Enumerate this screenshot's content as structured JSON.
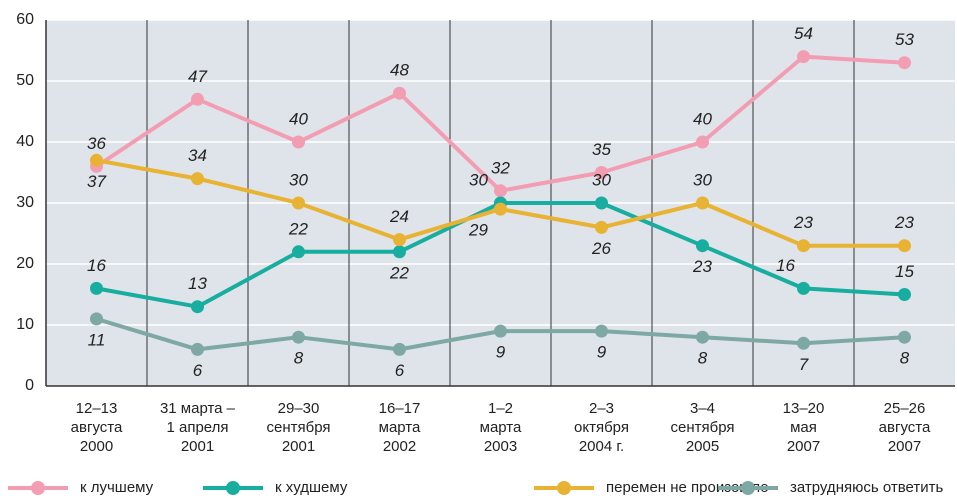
{
  "chart_data": {
    "type": "line",
    "categories": [
      [
        "12–13",
        "августа",
        "2000"
      ],
      [
        "31 марта –",
        "1 апреля",
        "2001"
      ],
      [
        "29–30",
        "сентября",
        "2001"
      ],
      [
        "16–17",
        "марта",
        "2002"
      ],
      [
        "1–2",
        "марта",
        "2003"
      ],
      [
        "2–3",
        "октября",
        "2004 г."
      ],
      [
        "3–4",
        "сентября",
        "2005"
      ],
      [
        "13–20",
        "мая",
        "2007"
      ],
      [
        "25–26",
        "августа",
        "2007"
      ]
    ],
    "series": [
      {
        "name": "к лучшему",
        "color": "#f39db3",
        "values": [
          36,
          47,
          40,
          48,
          32,
          35,
          40,
          54,
          53
        ]
      },
      {
        "name": "к худшему",
        "color": "#17ad9f",
        "values": [
          16,
          13,
          22,
          22,
          30,
          30,
          23,
          16,
          15
        ]
      },
      {
        "name": "перемен не произошло",
        "color": "#e8b232",
        "values": [
          37,
          34,
          30,
          24,
          29,
          26,
          30,
          23,
          23
        ]
      },
      {
        "name": "затрудняюсь ответить",
        "color": "#7ea8a3",
        "values": [
          11,
          6,
          8,
          6,
          9,
          9,
          8,
          7,
          8
        ]
      }
    ],
    "ylim": [
      0,
      60
    ],
    "yticks": [
      0,
      10,
      20,
      30,
      40,
      50,
      60
    ],
    "grid": true
  }
}
